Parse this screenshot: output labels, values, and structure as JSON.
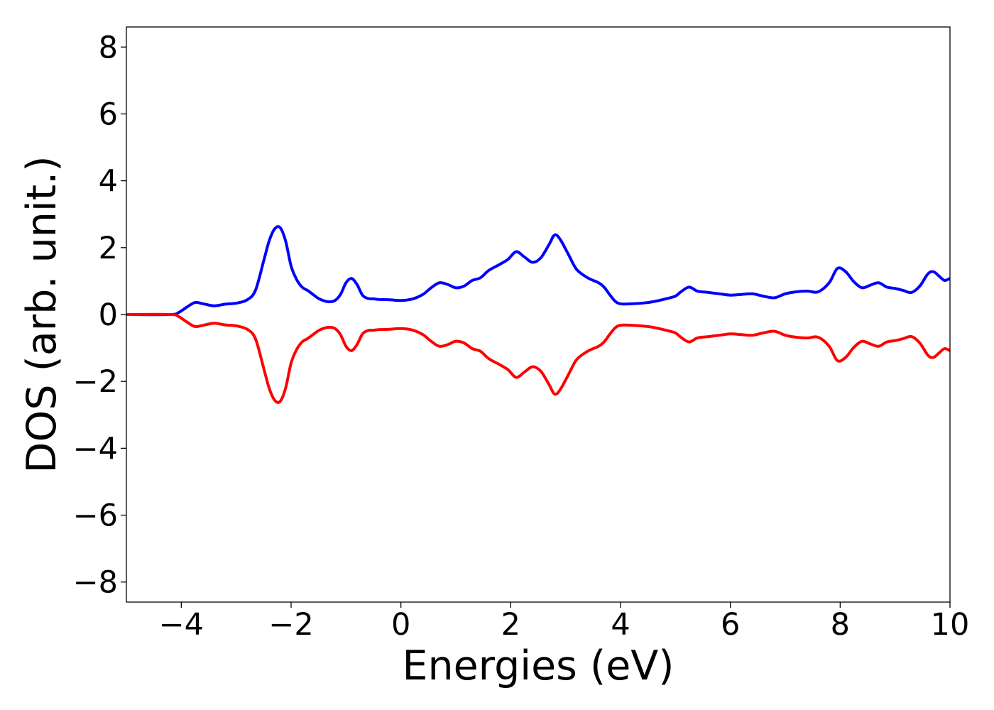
{
  "chart_data": {
    "type": "line",
    "title": "",
    "xlabel": "Energies (eV)",
    "ylabel": "DOS (arb. unit.)",
    "xlim": [
      -5,
      10
    ],
    "ylim": [
      -8.6,
      8.6
    ],
    "x_ticks": [
      -4,
      -2,
      0,
      2,
      4,
      6,
      8,
      10
    ],
    "x_tick_labels": [
      "−4",
      "−2",
      "0",
      "2",
      "4",
      "6",
      "8",
      "10"
    ],
    "y_ticks": [
      -8,
      -6,
      -4,
      -2,
      0,
      2,
      4,
      6,
      8
    ],
    "y_tick_labels": [
      "−8",
      "−6",
      "−4",
      "−2",
      "0",
      "2",
      "4",
      "6",
      "8"
    ],
    "grid": false,
    "legend": "none",
    "series": [
      {
        "color": "#0000ff",
        "x": [
          -5.0,
          -4.2,
          -4.05,
          -3.9,
          -3.75,
          -3.6,
          -3.4,
          -3.2,
          -3.0,
          -2.8,
          -2.65,
          -2.5,
          -2.4,
          -2.3,
          -2.2,
          -2.1,
          -2.0,
          -1.9,
          -1.8,
          -1.7,
          -1.6,
          -1.5,
          -1.4,
          -1.3,
          -1.2,
          -1.1,
          -1.0,
          -0.9,
          -0.8,
          -0.7,
          -0.6,
          -0.5,
          -0.4,
          -0.2,
          0.0,
          0.2,
          0.4,
          0.55,
          0.7,
          0.85,
          1.0,
          1.15,
          1.3,
          1.45,
          1.6,
          1.8,
          1.95,
          2.1,
          2.25,
          2.4,
          2.55,
          2.7,
          2.8,
          2.9,
          3.05,
          3.2,
          3.4,
          3.6,
          3.7,
          3.8,
          3.9,
          4.0,
          4.2,
          4.5,
          4.7,
          4.85,
          5.0,
          5.1,
          5.25,
          5.4,
          5.6,
          5.8,
          6.0,
          6.2,
          6.4,
          6.6,
          6.8,
          7.0,
          7.2,
          7.4,
          7.6,
          7.8,
          7.95,
          8.1,
          8.25,
          8.4,
          8.55,
          8.7,
          8.85,
          9.0,
          9.15,
          9.3,
          9.45,
          9.6,
          9.7,
          9.8,
          9.9,
          10.0
        ],
        "y": [
          0.0,
          0.0,
          0.06,
          0.22,
          0.36,
          0.32,
          0.26,
          0.31,
          0.34,
          0.44,
          0.72,
          1.6,
          2.2,
          2.56,
          2.6,
          2.2,
          1.45,
          1.05,
          0.82,
          0.72,
          0.6,
          0.48,
          0.41,
          0.38,
          0.42,
          0.6,
          0.95,
          1.08,
          0.9,
          0.58,
          0.48,
          0.47,
          0.45,
          0.44,
          0.42,
          0.46,
          0.6,
          0.8,
          0.95,
          0.9,
          0.8,
          0.85,
          1.02,
          1.1,
          1.32,
          1.5,
          1.65,
          1.88,
          1.72,
          1.56,
          1.7,
          2.1,
          2.38,
          2.25,
          1.8,
          1.35,
          1.1,
          0.95,
          0.82,
          0.6,
          0.4,
          0.32,
          0.32,
          0.36,
          0.42,
          0.48,
          0.55,
          0.68,
          0.82,
          0.7,
          0.66,
          0.62,
          0.58,
          0.6,
          0.62,
          0.55,
          0.5,
          0.62,
          0.68,
          0.7,
          0.68,
          0.95,
          1.38,
          1.28,
          0.98,
          0.8,
          0.88,
          0.95,
          0.82,
          0.78,
          0.72,
          0.66,
          0.85,
          1.22,
          1.28,
          1.15,
          1.02,
          1.08
        ]
      },
      {
        "color": "#ff0000",
        "x": [
          -5.0,
          -4.2,
          -4.05,
          -3.9,
          -3.75,
          -3.6,
          -3.4,
          -3.2,
          -3.0,
          -2.8,
          -2.65,
          -2.5,
          -2.4,
          -2.3,
          -2.2,
          -2.1,
          -2.0,
          -1.9,
          -1.8,
          -1.7,
          -1.6,
          -1.5,
          -1.4,
          -1.3,
          -1.2,
          -1.1,
          -1.0,
          -0.9,
          -0.8,
          -0.7,
          -0.6,
          -0.5,
          -0.4,
          -0.2,
          0.0,
          0.2,
          0.4,
          0.55,
          0.7,
          0.85,
          1.0,
          1.15,
          1.3,
          1.45,
          1.6,
          1.8,
          1.95,
          2.1,
          2.25,
          2.4,
          2.55,
          2.7,
          2.8,
          2.9,
          3.05,
          3.2,
          3.4,
          3.6,
          3.7,
          3.8,
          3.9,
          4.0,
          4.2,
          4.5,
          4.7,
          4.85,
          5.0,
          5.1,
          5.25,
          5.4,
          5.6,
          5.8,
          6.0,
          6.2,
          6.4,
          6.6,
          6.8,
          7.0,
          7.2,
          7.4,
          7.6,
          7.8,
          7.95,
          8.1,
          8.25,
          8.4,
          8.55,
          8.7,
          8.85,
          9.0,
          9.15,
          9.3,
          9.45,
          9.6,
          9.7,
          9.8,
          9.9,
          10.0
        ],
        "y": [
          0.0,
          0.0,
          -0.06,
          -0.22,
          -0.36,
          -0.32,
          -0.26,
          -0.31,
          -0.34,
          -0.44,
          -0.72,
          -1.6,
          -2.2,
          -2.56,
          -2.6,
          -2.2,
          -1.45,
          -1.05,
          -0.82,
          -0.72,
          -0.6,
          -0.48,
          -0.41,
          -0.38,
          -0.42,
          -0.6,
          -0.95,
          -1.08,
          -0.9,
          -0.58,
          -0.48,
          -0.47,
          -0.45,
          -0.44,
          -0.42,
          -0.46,
          -0.6,
          -0.8,
          -0.95,
          -0.9,
          -0.8,
          -0.85,
          -1.02,
          -1.1,
          -1.32,
          -1.5,
          -1.65,
          -1.88,
          -1.72,
          -1.56,
          -1.7,
          -2.1,
          -2.38,
          -2.25,
          -1.8,
          -1.35,
          -1.1,
          -0.95,
          -0.82,
          -0.6,
          -0.4,
          -0.32,
          -0.32,
          -0.36,
          -0.42,
          -0.48,
          -0.55,
          -0.68,
          -0.82,
          -0.7,
          -0.66,
          -0.62,
          -0.58,
          -0.6,
          -0.62,
          -0.55,
          -0.5,
          -0.62,
          -0.68,
          -0.7,
          -0.68,
          -0.95,
          -1.38,
          -1.28,
          -0.98,
          -0.8,
          -0.88,
          -0.95,
          -0.82,
          -0.78,
          -0.72,
          -0.66,
          -0.85,
          -1.22,
          -1.28,
          -1.15,
          -1.02,
          -1.08
        ]
      }
    ]
  }
}
